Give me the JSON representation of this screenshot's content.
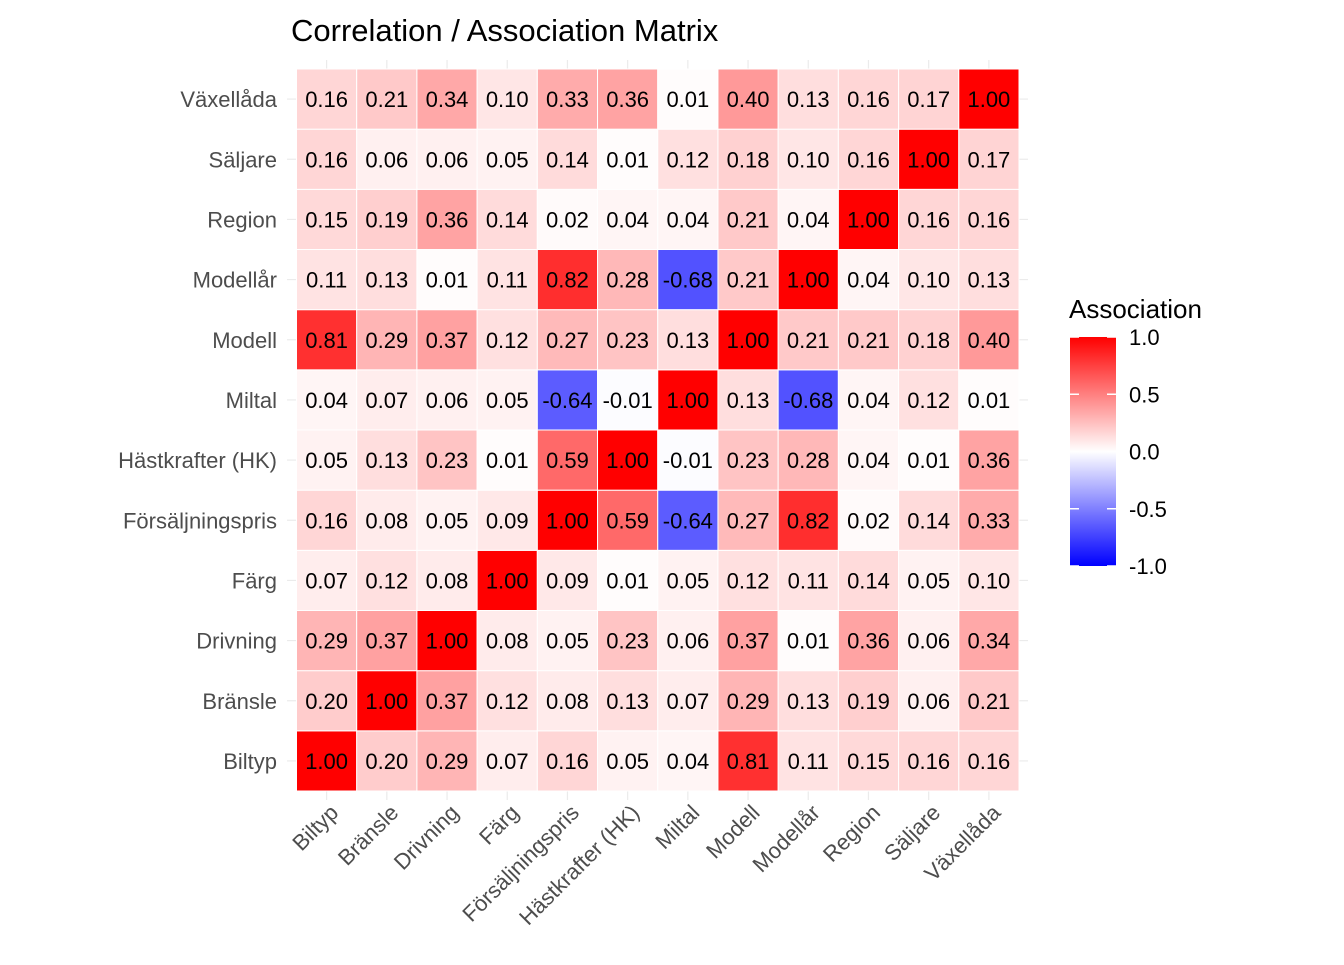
{
  "chart_data": {
    "type": "heatmap",
    "title": "Correlation / Association Matrix",
    "xlabel": "",
    "ylabel": "",
    "variables": [
      "Biltyp",
      "Bränsle",
      "Drivning",
      "Färg",
      "Försäljningspris",
      "Hästkrafter (HK)",
      "Miltal",
      "Modell",
      "Modellår",
      "Region",
      "Säljare",
      "Växellåda"
    ],
    "values": [
      [
        1.0,
        0.2,
        0.29,
        0.07,
        0.16,
        0.05,
        0.04,
        0.81,
        0.11,
        0.15,
        0.16,
        0.16
      ],
      [
        0.2,
        1.0,
        0.37,
        0.12,
        0.08,
        0.13,
        0.07,
        0.29,
        0.13,
        0.19,
        0.06,
        0.21
      ],
      [
        0.29,
        0.37,
        1.0,
        0.08,
        0.05,
        0.23,
        0.06,
        0.37,
        0.01,
        0.36,
        0.06,
        0.34
      ],
      [
        0.07,
        0.12,
        0.08,
        1.0,
        0.09,
        0.01,
        0.05,
        0.12,
        0.11,
        0.14,
        0.05,
        0.1
      ],
      [
        0.16,
        0.08,
        0.05,
        0.09,
        1.0,
        0.59,
        -0.64,
        0.27,
        0.82,
        0.02,
        0.14,
        0.33
      ],
      [
        0.05,
        0.13,
        0.23,
        0.01,
        0.59,
        1.0,
        -0.01,
        0.23,
        0.28,
        0.04,
        0.01,
        0.36
      ],
      [
        0.04,
        0.07,
        0.06,
        0.05,
        -0.64,
        -0.01,
        1.0,
        0.13,
        -0.68,
        0.04,
        0.12,
        0.01
      ],
      [
        0.81,
        0.29,
        0.37,
        0.12,
        0.27,
        0.23,
        0.13,
        1.0,
        0.21,
        0.21,
        0.18,
        0.4
      ],
      [
        0.11,
        0.13,
        0.01,
        0.11,
        0.82,
        0.28,
        -0.68,
        0.21,
        1.0,
        0.04,
        0.1,
        0.13
      ],
      [
        0.15,
        0.19,
        0.36,
        0.14,
        0.02,
        0.04,
        0.04,
        0.21,
        0.04,
        1.0,
        0.16,
        0.16
      ],
      [
        0.16,
        0.06,
        0.06,
        0.05,
        0.14,
        0.01,
        0.12,
        0.18,
        0.1,
        0.16,
        1.0,
        0.17
      ],
      [
        0.16,
        0.21,
        0.34,
        0.1,
        0.33,
        0.36,
        0.01,
        0.4,
        0.13,
        0.16,
        0.17,
        1.0
      ]
    ],
    "legend": {
      "title": "Association",
      "position": "right",
      "range": [
        -1.0,
        1.0
      ],
      "ticks": [
        1.0,
        0.5,
        0.0,
        -0.5,
        -1.0
      ],
      "tick_labels": [
        "1.0",
        "0.5",
        "0.0",
        "-0.5",
        "-1.0"
      ]
    },
    "colors": {
      "low": "#0000ff",
      "mid": "#ffffff",
      "high": "#ff0000"
    },
    "grid": false
  }
}
